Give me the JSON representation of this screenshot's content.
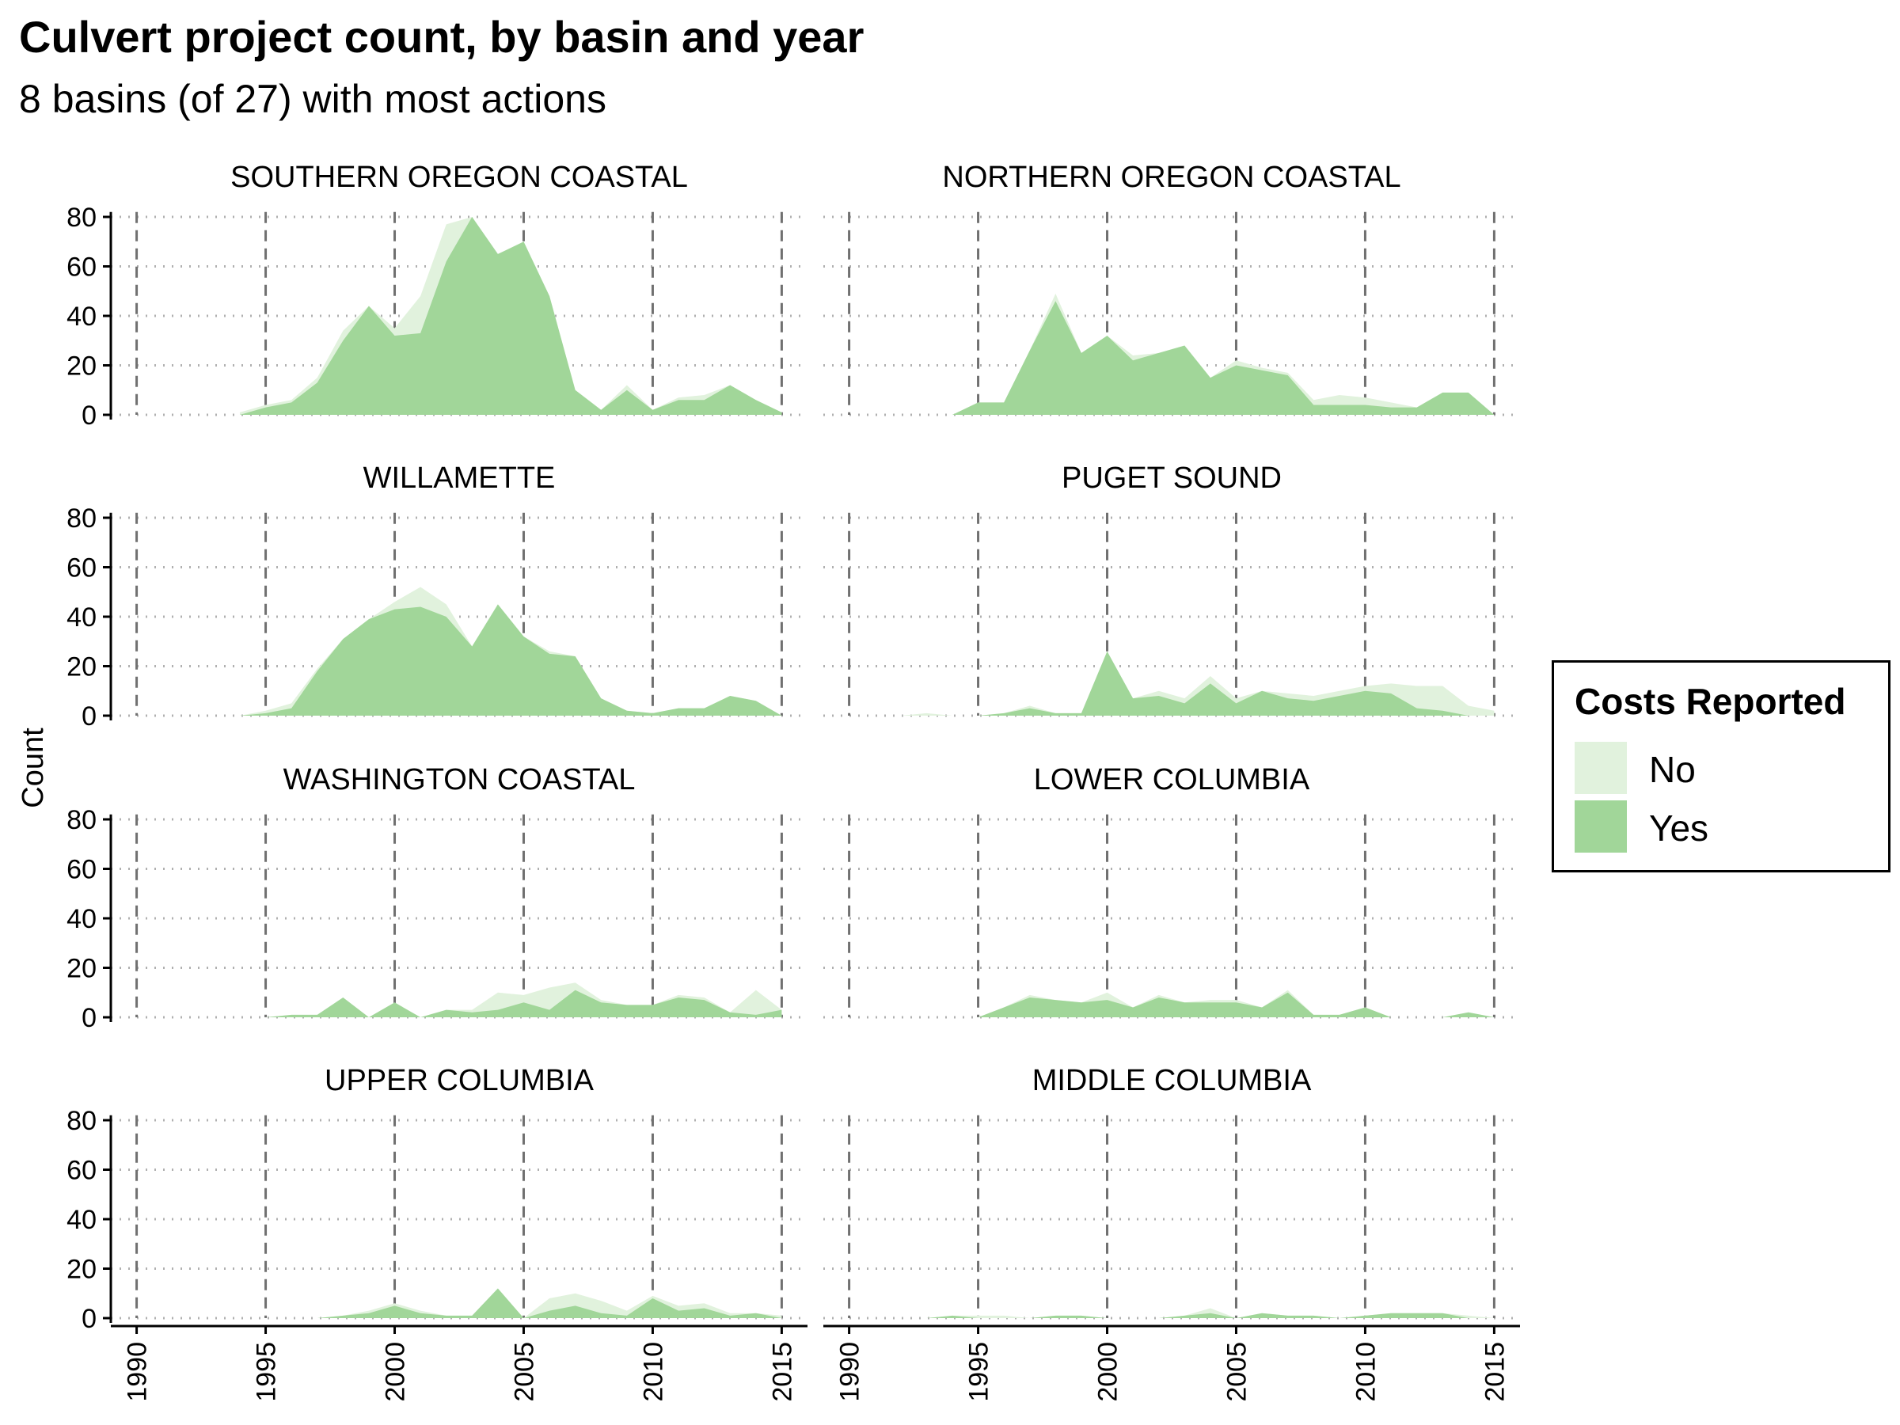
{
  "chart_data": {
    "type": "area",
    "title": "Culvert project count, by basin and year",
    "subtitle": "8 basins (of 27) with most actions",
    "xlabel": "",
    "ylabel": "Count",
    "x_ticks": [
      1990,
      1995,
      2000,
      2005,
      2010,
      2015
    ],
    "y_ticks": [
      0,
      20,
      40,
      60,
      80
    ],
    "xlim": [
      1989,
      2016
    ],
    "ylim": [
      0,
      82
    ],
    "grid": "dotted horizontal at y ticks, dashed vertical at x ticks",
    "legend": {
      "title": "Costs Reported",
      "placement": "right",
      "entries": [
        {
          "name": "No",
          "color": "#e1f2dd"
        },
        {
          "name": "Yes",
          "color": "#a1d699"
        }
      ]
    },
    "stacking": "Yes drawn from 0; No stacked on top of Yes",
    "panels": [
      {
        "name": "SOUTHERN OREGON COASTAL",
        "x": [
          1994,
          1995,
          1996,
          1997,
          1998,
          1999,
          2000,
          2001,
          2002,
          2003,
          2004,
          2005,
          2006,
          2007,
          2008,
          2009,
          2010,
          2011,
          2012,
          2013,
          2014,
          2015
        ],
        "yes": [
          0,
          3,
          5,
          13,
          30,
          44,
          32,
          33,
          62,
          80,
          65,
          70,
          48,
          10,
          2,
          10,
          2,
          6,
          6,
          12,
          6,
          1
        ],
        "no": [
          1,
          1,
          1,
          2,
          4,
          0,
          3,
          15,
          15,
          0,
          0,
          0,
          0,
          0,
          0,
          2,
          0,
          1,
          2,
          0,
          0,
          0
        ]
      },
      {
        "name": "NORTHERN OREGON COASTAL",
        "x": [
          1994,
          1995,
          1996,
          1997,
          1998,
          1999,
          2000,
          2001,
          2002,
          2003,
          2004,
          2005,
          2006,
          2007,
          2008,
          2009,
          2010,
          2011,
          2012,
          2013,
          2014,
          2015
        ],
        "yes": [
          0,
          5,
          5,
          26,
          46,
          25,
          32,
          22,
          25,
          28,
          15,
          20,
          18,
          16,
          4,
          4,
          4,
          3,
          3,
          9,
          9,
          0
        ],
        "no": [
          0,
          0,
          0,
          0,
          3,
          0,
          0,
          2,
          0,
          0,
          0,
          2,
          1,
          1,
          2,
          4,
          3,
          2,
          0,
          0,
          0,
          0
        ]
      },
      {
        "name": "WILLAMETTE",
        "x": [
          1994,
          1995,
          1996,
          1997,
          1998,
          1999,
          2000,
          2001,
          2002,
          2003,
          2004,
          2005,
          2006,
          2007,
          2008,
          2009,
          2010,
          2011,
          2012,
          2013,
          2014,
          2015
        ],
        "yes": [
          0,
          1,
          3,
          18,
          31,
          39,
          43,
          44,
          40,
          28,
          45,
          32,
          25,
          24,
          7,
          2,
          1,
          3,
          3,
          8,
          6,
          0
        ],
        "no": [
          0,
          1,
          2,
          1,
          0,
          0,
          3,
          8,
          5,
          0,
          0,
          0,
          1,
          0,
          0,
          0,
          0,
          0,
          0,
          0,
          0,
          0
        ]
      },
      {
        "name": "PUGET SOUND",
        "x": [
          1992,
          1993,
          1994,
          1995,
          1996,
          1997,
          1998,
          1999,
          2000,
          2001,
          2002,
          2003,
          2004,
          2005,
          2006,
          2007,
          2008,
          2009,
          2010,
          2011,
          2012,
          2013,
          2014,
          2015
        ],
        "yes": [
          0,
          0,
          0,
          0,
          1,
          3,
          1,
          1,
          26,
          7,
          8,
          5,
          13,
          5,
          10,
          7,
          6,
          8,
          10,
          9,
          3,
          2,
          0,
          0
        ],
        "no": [
          0,
          1,
          0,
          0,
          0,
          1,
          0,
          0,
          0,
          0,
          2,
          2,
          3,
          2,
          0,
          2,
          2,
          2,
          2,
          4,
          9,
          10,
          4,
          2
        ]
      },
      {
        "name": "WASHINGTON COASTAL",
        "x": [
          1995,
          1996,
          1997,
          1998,
          1999,
          2000,
          2001,
          2002,
          2003,
          2004,
          2005,
          2006,
          2007,
          2008,
          2009,
          2010,
          2011,
          2012,
          2013,
          2014,
          2015
        ],
        "yes": [
          0,
          1,
          1,
          8,
          0,
          6,
          0,
          3,
          2,
          3,
          6,
          3,
          11,
          6,
          5,
          5,
          8,
          7,
          2,
          1,
          3
        ],
        "no": [
          0,
          0,
          0,
          0,
          0,
          0,
          0,
          0,
          1,
          7,
          3,
          9,
          3,
          1,
          0,
          0,
          1,
          1,
          0,
          10,
          0
        ]
      },
      {
        "name": "LOWER COLUMBIA",
        "x": [
          1995,
          1996,
          1997,
          1998,
          1999,
          2000,
          2001,
          2002,
          2003,
          2004,
          2005,
          2006,
          2007,
          2008,
          2009,
          2010,
          2011,
          2012,
          2013,
          2014,
          2015
        ],
        "yes": [
          0,
          4,
          8,
          7,
          6,
          7,
          4,
          8,
          6,
          6,
          6,
          4,
          10,
          1,
          1,
          4,
          0,
          0,
          0,
          2,
          0
        ],
        "no": [
          0,
          0,
          1,
          0,
          0,
          3,
          0,
          1,
          0,
          1,
          1,
          0,
          1,
          0,
          0,
          0,
          0,
          0,
          0,
          0,
          0
        ]
      },
      {
        "name": "UPPER COLUMBIA",
        "x": [
          1997,
          1998,
          1999,
          2000,
          2001,
          2002,
          2003,
          2004,
          2005,
          2006,
          2007,
          2008,
          2009,
          2010,
          2011,
          2012,
          2013,
          2014,
          2015
        ],
        "yes": [
          0,
          1,
          2,
          5,
          2,
          1,
          1,
          12,
          0,
          3,
          5,
          2,
          1,
          8,
          3,
          4,
          1,
          2,
          0
        ],
        "no": [
          0,
          0,
          1,
          1,
          1,
          0,
          0,
          0,
          0,
          5,
          5,
          5,
          2,
          1,
          2,
          2,
          1,
          0,
          1
        ]
      },
      {
        "name": "MIDDLE COLUMBIA",
        "x": [
          1993,
          1994,
          1995,
          1996,
          1997,
          1998,
          1999,
          2000,
          2001,
          2002,
          2003,
          2004,
          2005,
          2006,
          2007,
          2008,
          2009,
          2010,
          2011,
          2012,
          2013,
          2014,
          2015
        ],
        "yes": [
          0,
          1,
          0,
          0,
          0,
          1,
          1,
          0,
          0,
          0,
          1,
          2,
          0,
          2,
          1,
          1,
          0,
          1,
          2,
          2,
          2,
          0,
          0
        ],
        "no": [
          0,
          0,
          1,
          1,
          0,
          0,
          0,
          0,
          0,
          0,
          0,
          2,
          0,
          0,
          0,
          0,
          0,
          0,
          0,
          0,
          0,
          1,
          0
        ]
      }
    ]
  }
}
